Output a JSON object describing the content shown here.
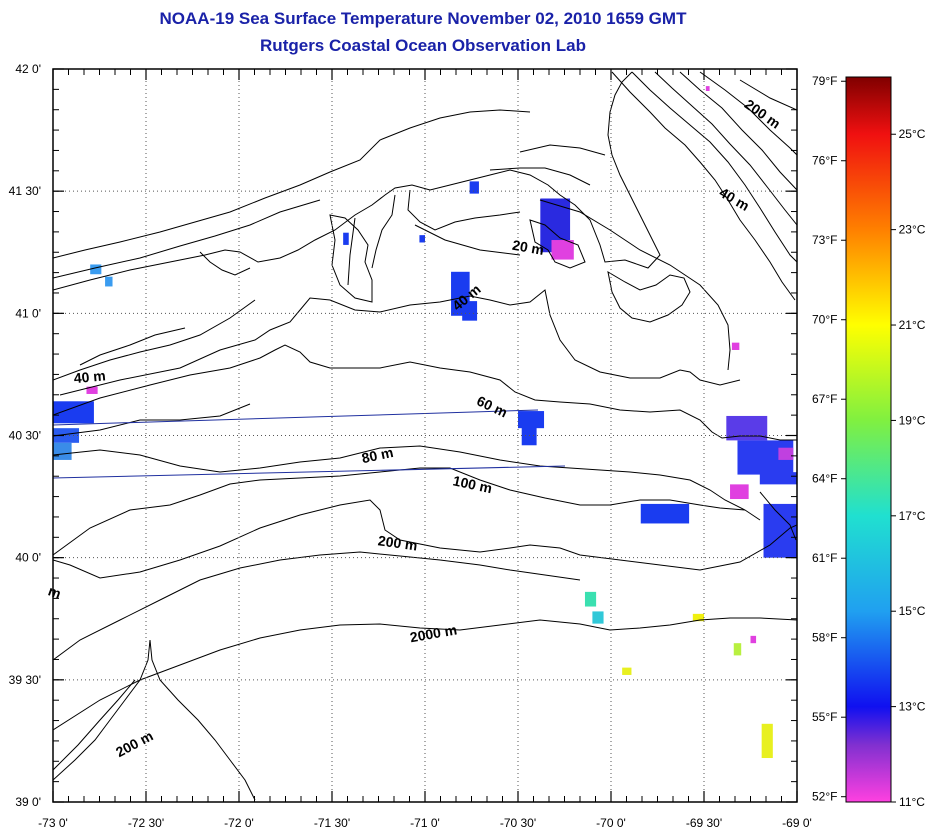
{
  "title": {
    "line1": "NOAA-19 Sea Surface Temperature November 02, 2010 1659 GMT",
    "line2": "Rutgers Coastal Ocean Observation Lab"
  },
  "map": {
    "lon_range": [
      -73.0,
      -69.0
    ],
    "lat_range": [
      39.0,
      42.0
    ],
    "lat_ticks": [
      {
        "value": 42.0,
        "label": "42 0'"
      },
      {
        "value": 41.5,
        "label": "41 30'"
      },
      {
        "value": 41.0,
        "label": "41 0'"
      },
      {
        "value": 40.5,
        "label": "40 30'"
      },
      {
        "value": 40.0,
        "label": "40 0'"
      },
      {
        "value": 39.5,
        "label": "39 30'"
      },
      {
        "value": 39.0,
        "label": "39 0'"
      }
    ],
    "lon_ticks": [
      {
        "value": -73.0,
        "label": "-73 0'"
      },
      {
        "value": -72.5,
        "label": "-72 30'"
      },
      {
        "value": -72.0,
        "label": "-72 0'"
      },
      {
        "value": -71.5,
        "label": "-71 30'"
      },
      {
        "value": -71.0,
        "label": "-71 0'"
      },
      {
        "value": -70.5,
        "label": "-70 30'"
      },
      {
        "value": -70.0,
        "label": "-70 0'"
      },
      {
        "value": -69.5,
        "label": "-69 30'"
      },
      {
        "value": -69.0,
        "label": "-69 0'"
      }
    ],
    "grid": "dotted",
    "contour_labels": [
      {
        "text": "200 m",
        "lon": -69.2,
        "lat": 41.8,
        "angle": 35
      },
      {
        "text": "40 m",
        "lon": -69.35,
        "lat": 41.45,
        "angle": 30
      },
      {
        "text": "20 m",
        "lon": -70.45,
        "lat": 41.25,
        "angle": 10
      },
      {
        "text": "40 m",
        "lon": -70.76,
        "lat": 41.05,
        "angle": -40
      },
      {
        "text": "40 m",
        "lon": -72.8,
        "lat": 40.72,
        "angle": -5
      },
      {
        "text": "60 m",
        "lon": -70.65,
        "lat": 40.6,
        "angle": 25
      },
      {
        "text": "80 m",
        "lon": -71.25,
        "lat": 40.4,
        "angle": -12
      },
      {
        "text": "100 m",
        "lon": -70.75,
        "lat": 40.28,
        "angle": 12
      },
      {
        "text": "200 m",
        "lon": -71.15,
        "lat": 40.04,
        "angle": 8
      },
      {
        "text": "2000 m",
        "lon": -70.95,
        "lat": 39.67,
        "angle": -10
      },
      {
        "text": "200 m",
        "lon": -72.55,
        "lat": 39.22,
        "angle": -28
      },
      {
        "text": "m",
        "lon": -73.0,
        "lat": 39.84,
        "angle": 20
      }
    ],
    "sst_patches": [
      {
        "lon": -70.86,
        "lat": 41.17,
        "w": 0.1,
        "h": 0.18,
        "color": "#1a3cf0"
      },
      {
        "lon": -70.8,
        "lat": 41.05,
        "w": 0.08,
        "h": 0.08,
        "color": "#1a3cf0"
      },
      {
        "lon": -70.38,
        "lat": 41.47,
        "w": 0.16,
        "h": 0.22,
        "color": "#2a2ae0"
      },
      {
        "lon": -70.32,
        "lat": 41.3,
        "w": 0.12,
        "h": 0.08,
        "color": "#e040e0"
      },
      {
        "lon": -70.76,
        "lat": 41.54,
        "w": 0.05,
        "h": 0.05,
        "color": "#1a3cf0"
      },
      {
        "lon": -72.8,
        "lat": 41.2,
        "w": 0.06,
        "h": 0.04,
        "color": "#3a9cf0"
      },
      {
        "lon": -72.72,
        "lat": 41.15,
        "w": 0.04,
        "h": 0.04,
        "color": "#3a9cf0"
      },
      {
        "lon": -71.44,
        "lat": 41.33,
        "w": 0.03,
        "h": 0.05,
        "color": "#1a3cf0"
      },
      {
        "lon": -71.03,
        "lat": 41.32,
        "w": 0.03,
        "h": 0.03,
        "color": "#1a3cf0"
      },
      {
        "lon": -73.0,
        "lat": 40.64,
        "w": 0.22,
        "h": 0.09,
        "color": "#1a3cf0"
      },
      {
        "lon": -73.0,
        "lat": 40.53,
        "w": 0.14,
        "h": 0.06,
        "color": "#2a5cf0"
      },
      {
        "lon": -73.0,
        "lat": 40.47,
        "w": 0.1,
        "h": 0.07,
        "color": "#3a8ce8"
      },
      {
        "lon": -72.82,
        "lat": 40.7,
        "w": 0.06,
        "h": 0.03,
        "color": "#e040e0"
      },
      {
        "lon": -70.5,
        "lat": 40.6,
        "w": 0.14,
        "h": 0.07,
        "color": "#1a3cf0"
      },
      {
        "lon": -70.48,
        "lat": 40.54,
        "w": 0.08,
        "h": 0.08,
        "color": "#1a3cf0"
      },
      {
        "lon": -69.38,
        "lat": 40.58,
        "w": 0.22,
        "h": 0.1,
        "color": "#5a3ce8"
      },
      {
        "lon": -69.32,
        "lat": 40.48,
        "w": 0.3,
        "h": 0.14,
        "color": "#2a3cf0"
      },
      {
        "lon": -69.2,
        "lat": 40.35,
        "w": 0.2,
        "h": 0.05,
        "color": "#2a3cf0"
      },
      {
        "lon": -69.36,
        "lat": 40.3,
        "w": 0.1,
        "h": 0.06,
        "color": "#e040e0"
      },
      {
        "lon": -69.18,
        "lat": 40.22,
        "w": 0.18,
        "h": 0.22,
        "color": "#2a3cf0"
      },
      {
        "lon": -69.1,
        "lat": 40.45,
        "w": 0.08,
        "h": 0.05,
        "color": "#c040e0"
      },
      {
        "lon": -69.84,
        "lat": 40.22,
        "w": 0.26,
        "h": 0.08,
        "color": "#1a3cf0"
      },
      {
        "lon": -70.14,
        "lat": 39.86,
        "w": 0.06,
        "h": 0.06,
        "color": "#3ae0b0"
      },
      {
        "lon": -70.1,
        "lat": 39.78,
        "w": 0.06,
        "h": 0.05,
        "color": "#30c8d8"
      },
      {
        "lon": -69.56,
        "lat": 39.77,
        "w": 0.06,
        "h": 0.03,
        "color": "#f0f010"
      },
      {
        "lon": -69.19,
        "lat": 39.32,
        "w": 0.06,
        "h": 0.14,
        "color": "#e8f020"
      },
      {
        "lon": -69.94,
        "lat": 39.55,
        "w": 0.05,
        "h": 0.03,
        "color": "#e8f020"
      },
      {
        "lon": -69.34,
        "lat": 39.65,
        "w": 0.04,
        "h": 0.05,
        "color": "#b8f040"
      },
      {
        "lon": -69.25,
        "lat": 39.68,
        "w": 0.03,
        "h": 0.03,
        "color": "#e040e0"
      },
      {
        "lon": -69.35,
        "lat": 40.88,
        "w": 0.04,
        "h": 0.03,
        "color": "#e040e0"
      },
      {
        "lon": -69.49,
        "lat": 41.93,
        "w": 0.02,
        "h": 0.02,
        "color": "#e040e0"
      }
    ]
  },
  "colorbar": {
    "range_c": [
      11,
      26.2
    ],
    "celsius_labels": [
      {
        "value": 25,
        "label": "25°C"
      },
      {
        "value": 23,
        "label": "23°C"
      },
      {
        "value": 21,
        "label": "21°C"
      },
      {
        "value": 19,
        "label": "19°C"
      },
      {
        "value": 17,
        "label": "17°C"
      },
      {
        "value": 15,
        "label": "15°C"
      },
      {
        "value": 13,
        "label": "13°C"
      },
      {
        "value": 11,
        "label": "11°C"
      }
    ],
    "fahrenheit_labels": [
      {
        "value": 79,
        "label": "79°F"
      },
      {
        "value": 76,
        "label": "76°F"
      },
      {
        "value": 73,
        "label": "73°F"
      },
      {
        "value": 70,
        "label": "70°F"
      },
      {
        "value": 67,
        "label": "67°F"
      },
      {
        "value": 64,
        "label": "64°F"
      },
      {
        "value": 61,
        "label": "61°F"
      },
      {
        "value": 58,
        "label": "58°F"
      },
      {
        "value": 55,
        "label": "55°F"
      },
      {
        "value": 52,
        "label": "52°F"
      }
    ],
    "stops": [
      {
        "c": 11,
        "color": "#ff40e0"
      },
      {
        "c": 12.2,
        "color": "#8030d0"
      },
      {
        "c": 13,
        "color": "#1010f0"
      },
      {
        "c": 15,
        "color": "#20a0f0"
      },
      {
        "c": 17,
        "color": "#20e0d0"
      },
      {
        "c": 19,
        "color": "#80f040"
      },
      {
        "c": 21,
        "color": "#ffff00"
      },
      {
        "c": 23,
        "color": "#ff8000"
      },
      {
        "c": 25,
        "color": "#f01010"
      },
      {
        "c": 26.2,
        "color": "#800000"
      }
    ]
  }
}
